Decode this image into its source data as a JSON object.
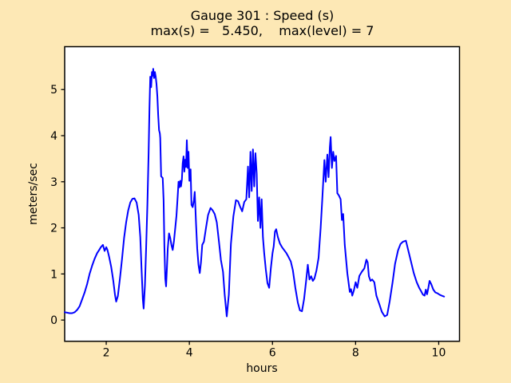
{
  "figure": {
    "background": "#FDE8B5",
    "plot_background": "#FFFFFF",
    "frame_color": "#000000"
  },
  "header": {
    "title": "Gauge 301 : Speed (s)",
    "subtitle": "max(s) =   5.450,    max(level) = 7"
  },
  "chart_data": {
    "type": "line",
    "title": "Gauge 301 : Speed (s)",
    "subtitle": "max(s) =   5.450,    max(level) = 7",
    "xlabel": "hours",
    "ylabel": "meters/sec",
    "xlim": [
      1.0,
      10.5
    ],
    "ylim": [
      -0.46,
      5.93
    ],
    "x_ticks": [
      2,
      4,
      6,
      8,
      10
    ],
    "y_ticks": [
      0,
      1,
      2,
      3,
      4,
      5
    ],
    "grid": false,
    "legend": null,
    "line_color": "#0000FF",
    "line_width": 2,
    "max_s": 5.45,
    "max_level": 7,
    "series": [
      {
        "name": "speed",
        "points": [
          [
            1.0,
            0.17
          ],
          [
            1.06,
            0.16
          ],
          [
            1.12,
            0.15
          ],
          [
            1.18,
            0.15
          ],
          [
            1.24,
            0.17
          ],
          [
            1.3,
            0.22
          ],
          [
            1.36,
            0.3
          ],
          [
            1.42,
            0.45
          ],
          [
            1.48,
            0.6
          ],
          [
            1.54,
            0.78
          ],
          [
            1.6,
            1.0
          ],
          [
            1.66,
            1.18
          ],
          [
            1.72,
            1.33
          ],
          [
            1.78,
            1.45
          ],
          [
            1.83,
            1.52
          ],
          [
            1.87,
            1.58
          ],
          [
            1.92,
            1.63
          ],
          [
            1.96,
            1.5
          ],
          [
            2.0,
            1.58
          ],
          [
            2.03,
            1.52
          ],
          [
            2.07,
            1.37
          ],
          [
            2.12,
            1.15
          ],
          [
            2.17,
            0.85
          ],
          [
            2.21,
            0.55
          ],
          [
            2.24,
            0.4
          ],
          [
            2.28,
            0.52
          ],
          [
            2.33,
            0.9
          ],
          [
            2.38,
            1.32
          ],
          [
            2.43,
            1.78
          ],
          [
            2.48,
            2.12
          ],
          [
            2.53,
            2.38
          ],
          [
            2.58,
            2.55
          ],
          [
            2.63,
            2.63
          ],
          [
            2.68,
            2.64
          ],
          [
            2.73,
            2.55
          ],
          [
            2.78,
            2.28
          ],
          [
            2.82,
            1.8
          ],
          [
            2.85,
            1.1
          ],
          [
            2.88,
            0.45
          ],
          [
            2.9,
            0.25
          ],
          [
            2.93,
            0.75
          ],
          [
            2.96,
            1.55
          ],
          [
            2.99,
            2.5
          ],
          [
            3.02,
            3.6
          ],
          [
            3.04,
            4.6
          ],
          [
            3.06,
            5.28
          ],
          [
            3.08,
            5.05
          ],
          [
            3.1,
            5.38
          ],
          [
            3.12,
            5.3
          ],
          [
            3.13,
            5.45
          ],
          [
            3.15,
            5.25
          ],
          [
            3.17,
            5.38
          ],
          [
            3.19,
            5.28
          ],
          [
            3.21,
            5.12
          ],
          [
            3.23,
            4.85
          ],
          [
            3.25,
            4.45
          ],
          [
            3.27,
            4.12
          ],
          [
            3.29,
            4.05
          ],
          [
            3.3,
            3.95
          ],
          [
            3.32,
            3.12
          ],
          [
            3.34,
            3.1
          ],
          [
            3.36,
            3.08
          ],
          [
            3.38,
            2.6
          ],
          [
            3.4,
            1.6
          ],
          [
            3.42,
            0.9
          ],
          [
            3.44,
            0.73
          ],
          [
            3.46,
            1.1
          ],
          [
            3.48,
            1.55
          ],
          [
            3.51,
            1.88
          ],
          [
            3.54,
            1.78
          ],
          [
            3.57,
            1.62
          ],
          [
            3.6,
            1.52
          ],
          [
            3.63,
            1.72
          ],
          [
            3.66,
            2.0
          ],
          [
            3.69,
            2.26
          ],
          [
            3.72,
            2.7
          ],
          [
            3.74,
            3.0
          ],
          [
            3.76,
            2.88
          ],
          [
            3.78,
            3.02
          ],
          [
            3.8,
            2.9
          ],
          [
            3.82,
            3.05
          ],
          [
            3.84,
            3.4
          ],
          [
            3.86,
            3.55
          ],
          [
            3.88,
            3.22
          ],
          [
            3.9,
            3.48
          ],
          [
            3.92,
            3.32
          ],
          [
            3.94,
            3.9
          ],
          [
            3.96,
            3.3
          ],
          [
            3.98,
            3.65
          ],
          [
            4.0,
            3.02
          ],
          [
            4.03,
            3.27
          ],
          [
            4.05,
            2.5
          ],
          [
            4.08,
            2.45
          ],
          [
            4.11,
            2.6
          ],
          [
            4.13,
            2.78
          ],
          [
            4.16,
            2.1
          ],
          [
            4.19,
            1.55
          ],
          [
            4.22,
            1.2
          ],
          [
            4.25,
            1.02
          ],
          [
            4.28,
            1.25
          ],
          [
            4.31,
            1.63
          ],
          [
            4.35,
            1.7
          ],
          [
            4.4,
            2.0
          ],
          [
            4.45,
            2.28
          ],
          [
            4.51,
            2.43
          ],
          [
            4.56,
            2.38
          ],
          [
            4.61,
            2.3
          ],
          [
            4.66,
            2.12
          ],
          [
            4.71,
            1.72
          ],
          [
            4.76,
            1.3
          ],
          [
            4.81,
            1.05
          ],
          [
            4.85,
            0.55
          ],
          [
            4.9,
            0.08
          ],
          [
            4.95,
            0.55
          ],
          [
            5.0,
            1.65
          ],
          [
            5.06,
            2.25
          ],
          [
            5.12,
            2.6
          ],
          [
            5.17,
            2.58
          ],
          [
            5.22,
            2.46
          ],
          [
            5.27,
            2.36
          ],
          [
            5.32,
            2.56
          ],
          [
            5.37,
            2.62
          ],
          [
            5.41,
            3.33
          ],
          [
            5.44,
            2.66
          ],
          [
            5.47,
            3.65
          ],
          [
            5.5,
            2.8
          ],
          [
            5.53,
            3.7
          ],
          [
            5.56,
            2.9
          ],
          [
            5.59,
            3.62
          ],
          [
            5.62,
            3.18
          ],
          [
            5.65,
            2.15
          ],
          [
            5.68,
            2.66
          ],
          [
            5.71,
            2.0
          ],
          [
            5.74,
            2.62
          ],
          [
            5.77,
            1.8
          ],
          [
            5.8,
            1.45
          ],
          [
            5.84,
            1.1
          ],
          [
            5.88,
            0.8
          ],
          [
            5.92,
            0.7
          ],
          [
            5.96,
            1.12
          ],
          [
            6.0,
            1.45
          ],
          [
            6.03,
            1.6
          ],
          [
            6.06,
            1.92
          ],
          [
            6.09,
            1.97
          ],
          [
            6.13,
            1.8
          ],
          [
            6.18,
            1.66
          ],
          [
            6.23,
            1.58
          ],
          [
            6.28,
            1.52
          ],
          [
            6.33,
            1.46
          ],
          [
            6.38,
            1.38
          ],
          [
            6.44,
            1.27
          ],
          [
            6.49,
            1.08
          ],
          [
            6.55,
            0.7
          ],
          [
            6.61,
            0.38
          ],
          [
            6.66,
            0.21
          ],
          [
            6.71,
            0.19
          ],
          [
            6.76,
            0.45
          ],
          [
            6.81,
            0.85
          ],
          [
            6.85,
            1.2
          ],
          [
            6.89,
            0.88
          ],
          [
            6.93,
            0.95
          ],
          [
            6.97,
            0.85
          ],
          [
            7.01,
            0.9
          ],
          [
            7.06,
            1.08
          ],
          [
            7.11,
            1.35
          ],
          [
            7.16,
            2.0
          ],
          [
            7.2,
            2.64
          ],
          [
            7.25,
            3.47
          ],
          [
            7.28,
            3.0
          ],
          [
            7.32,
            3.59
          ],
          [
            7.35,
            3.1
          ],
          [
            7.38,
            3.75
          ],
          [
            7.4,
            3.97
          ],
          [
            7.43,
            3.3
          ],
          [
            7.46,
            3.65
          ],
          [
            7.49,
            3.45
          ],
          [
            7.53,
            3.56
          ],
          [
            7.56,
            2.75
          ],
          [
            7.6,
            2.7
          ],
          [
            7.64,
            2.62
          ],
          [
            7.67,
            2.17
          ],
          [
            7.7,
            2.3
          ],
          [
            7.74,
            1.63
          ],
          [
            7.8,
            1.02
          ],
          [
            7.86,
            0.61
          ],
          [
            7.89,
            0.67
          ],
          [
            7.92,
            0.53
          ],
          [
            7.96,
            0.65
          ],
          [
            8.0,
            0.82
          ],
          [
            8.04,
            0.7
          ],
          [
            8.09,
            0.96
          ],
          [
            8.15,
            1.05
          ],
          [
            8.21,
            1.12
          ],
          [
            8.26,
            1.31
          ],
          [
            8.29,
            1.25
          ],
          [
            8.32,
            0.95
          ],
          [
            8.36,
            0.85
          ],
          [
            8.4,
            0.88
          ],
          [
            8.45,
            0.82
          ],
          [
            8.5,
            0.53
          ],
          [
            8.57,
            0.35
          ],
          [
            8.63,
            0.18
          ],
          [
            8.7,
            0.08
          ],
          [
            8.76,
            0.11
          ],
          [
            8.82,
            0.41
          ],
          [
            8.89,
            0.82
          ],
          [
            8.95,
            1.22
          ],
          [
            9.02,
            1.51
          ],
          [
            9.08,
            1.65
          ],
          [
            9.14,
            1.7
          ],
          [
            9.21,
            1.72
          ],
          [
            9.27,
            1.5
          ],
          [
            9.33,
            1.28
          ],
          [
            9.4,
            1.02
          ],
          [
            9.47,
            0.82
          ],
          [
            9.53,
            0.7
          ],
          [
            9.58,
            0.62
          ],
          [
            9.62,
            0.55
          ],
          [
            9.66,
            0.53
          ],
          [
            9.69,
            0.66
          ],
          [
            9.72,
            0.56
          ],
          [
            9.75,
            0.7
          ],
          [
            9.78,
            0.85
          ],
          [
            9.82,
            0.78
          ],
          [
            9.87,
            0.66
          ],
          [
            9.92,
            0.6
          ],
          [
            9.97,
            0.58
          ],
          [
            10.02,
            0.55
          ],
          [
            10.07,
            0.53
          ],
          [
            10.13,
            0.51
          ]
        ]
      }
    ]
  }
}
